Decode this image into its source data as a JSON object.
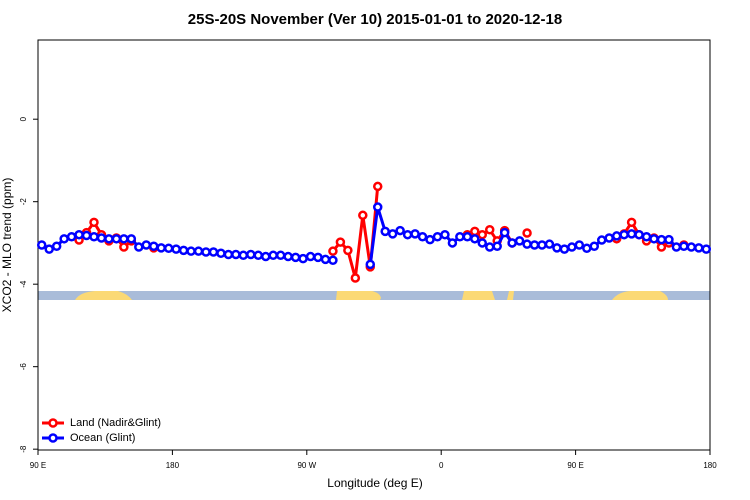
{
  "chart_data": {
    "type": "line",
    "title": "25S-20S November (Ver 10)   2015-01-01 to 2020-12-18",
    "x_label": "Longitude (deg E)",
    "y_label": "XCO2 - MLO trend (ppm)",
    "x": [
      92.5,
      97.5,
      102.5,
      107.5,
      112.5,
      117.5,
      122.5,
      127.5,
      132.5,
      137.5,
      142.5,
      147.5,
      152.5,
      157.5,
      162.5,
      167.5,
      172.5,
      177.5,
      182.5,
      187.5,
      192.5,
      197.5,
      202.5,
      207.5,
      212.5,
      217.5,
      222.5,
      227.5,
      232.5,
      237.5,
      242.5,
      247.5,
      252.5,
      257.5,
      262.5,
      267.5,
      272.5,
      277.5,
      282.5,
      287.5,
      292.5,
      297.5,
      302.5,
      307.5,
      312.5,
      317.5,
      322.5,
      327.5,
      332.5,
      337.5,
      342.5,
      347.5,
      352.5,
      357.5,
      362.5,
      367.5,
      372.5,
      377.5,
      382.5,
      387.5,
      392.5,
      397.5,
      402.5,
      407.5,
      412.5,
      417.5,
      422.5,
      427.5,
      432.5,
      437.5,
      442.5,
      447.5,
      452.5,
      457.5,
      462.5,
      467.5,
      472.5,
      477.5,
      482.5,
      487.5,
      492.5,
      497.5,
      502.5,
      507.5,
      512.5,
      517.5,
      522.5,
      527.5,
      532.5,
      537.5
    ],
    "series": [
      {
        "name": "Land (Nadir&Glint)",
        "color": "#ff0000",
        "values": [
          null,
          null,
          null,
          null,
          null,
          -2.93,
          -2.75,
          -2.5,
          -2.8,
          -2.95,
          -2.88,
          -3.1,
          -2.95,
          null,
          null,
          -3.12,
          null,
          null,
          null,
          null,
          null,
          null,
          null,
          null,
          null,
          null,
          null,
          null,
          null,
          null,
          null,
          null,
          null,
          null,
          null,
          null,
          null,
          null,
          null,
          -3.2,
          -2.98,
          -3.18,
          -3.85,
          -2.33,
          -3.58,
          -1.63,
          null,
          null,
          null,
          null,
          null,
          null,
          null,
          null,
          null,
          null,
          null,
          -2.8,
          -2.72,
          -2.8,
          -2.68,
          -2.95,
          -2.7,
          -3.0,
          null,
          -2.76,
          null,
          null,
          null,
          null,
          null,
          null,
          null,
          null,
          null,
          null,
          null,
          -2.9,
          -2.78,
          -2.5,
          -2.8,
          -2.95,
          -2.88,
          -3.1,
          -3.0,
          null,
          -3.05,
          null,
          null,
          null
        ]
      },
      {
        "name": "Ocean (Glint)",
        "color": "#0000ff",
        "values": [
          -3.05,
          -3.15,
          -3.08,
          -2.9,
          -2.85,
          -2.8,
          -2.82,
          -2.85,
          -2.88,
          -2.9,
          -2.9,
          -2.9,
          -2.9,
          -3.1,
          -3.05,
          -3.08,
          -3.12,
          -3.13,
          -3.15,
          -3.18,
          -3.2,
          -3.2,
          -3.22,
          -3.22,
          -3.25,
          -3.28,
          -3.28,
          -3.3,
          -3.28,
          -3.3,
          -3.33,
          -3.3,
          -3.3,
          -3.33,
          -3.35,
          -3.38,
          -3.33,
          -3.35,
          -3.4,
          -3.42,
          null,
          null,
          null,
          null,
          -3.52,
          -2.13,
          -2.72,
          -2.78,
          -2.7,
          -2.8,
          -2.78,
          -2.85,
          -2.92,
          -2.85,
          -2.8,
          -3.0,
          -2.85,
          -2.85,
          -2.9,
          -3.0,
          -3.1,
          -3.08,
          -2.75,
          -3.0,
          -2.95,
          -3.03,
          -3.05,
          -3.05,
          -3.03,
          -3.12,
          -3.15,
          -3.1,
          -3.05,
          -3.13,
          -3.08,
          -2.93,
          -2.88,
          -2.83,
          -2.8,
          -2.78,
          -2.8,
          -2.85,
          -2.9,
          -2.92,
          -2.92,
          -3.1,
          -3.08,
          -3.1,
          -3.12,
          -3.15
        ]
      }
    ],
    "xlim": [
      90,
      540
    ],
    "xticks": [
      {
        "value": 90,
        "label": "90 E"
      },
      180,
      {
        "value": 270,
        "label": "90 W"
      },
      {
        "value": 360,
        "label": "0"
      },
      {
        "value": 450,
        "label": "90 E"
      },
      {
        "value": 540,
        "label": "180"
      }
    ],
    "ylim": [
      -8.02,
      1.92
    ],
    "yticks": [
      0,
      -2,
      -4,
      -6,
      -8
    ],
    "legend": "bottom-left"
  }
}
